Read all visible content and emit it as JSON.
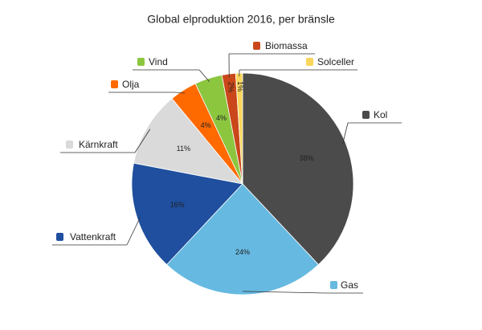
{
  "chart_data": {
    "type": "pie",
    "title": "Global elproduktion 2016, per bränsle",
    "categories": [
      "Kol",
      "Gas",
      "Vattenkraft",
      "Kärnkraft",
      "Olja",
      "Vind",
      "Biomassa",
      "Solceller"
    ],
    "values": [
      38,
      24,
      16,
      11,
      4,
      4,
      2,
      1
    ],
    "value_labels": [
      "38%",
      "24%",
      "16%",
      "11%",
      "4%",
      "4%",
      "2%",
      "1%"
    ],
    "colors": [
      "#4b4b4b",
      "#66b9e1",
      "#1f4f9e",
      "#dadada",
      "#ff6a00",
      "#8cc63f",
      "#c9471a",
      "#f9d65b"
    ]
  }
}
